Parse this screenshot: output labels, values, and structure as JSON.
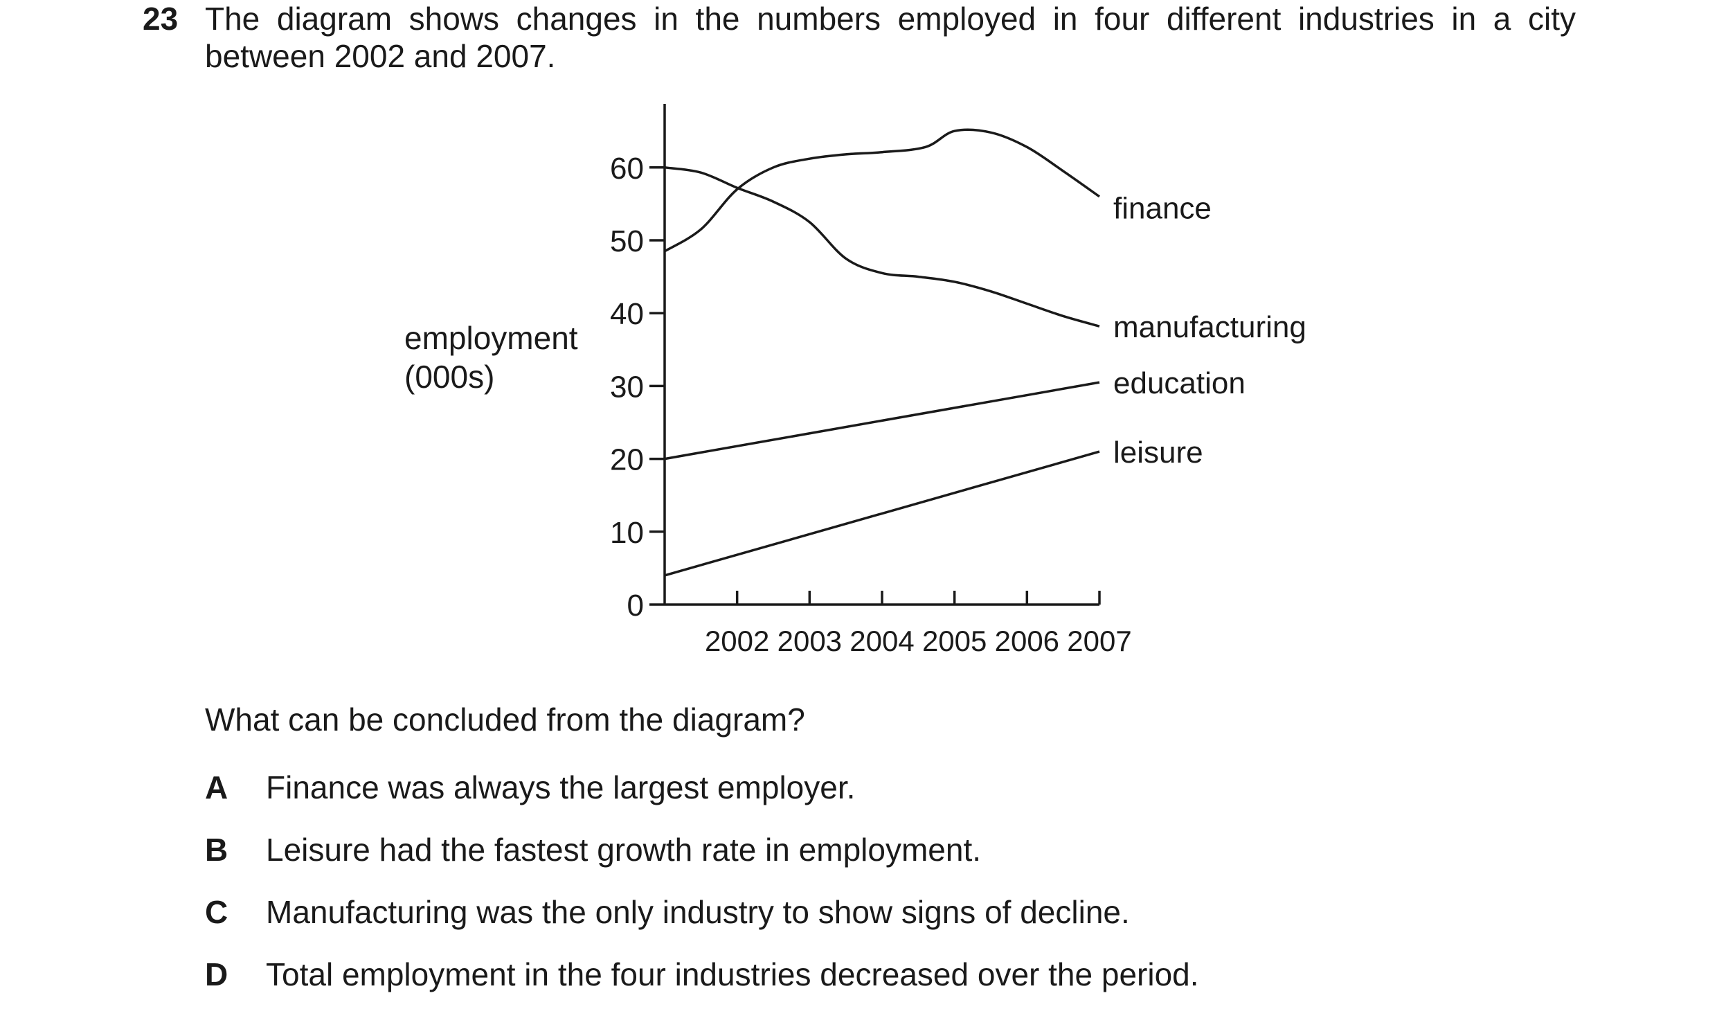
{
  "question": {
    "number": "23",
    "stem": "The diagram shows changes in the numbers employed in four different industries in a city between 2002 and 2007.",
    "prompt": "What can be concluded from the diagram?",
    "options": [
      {
        "letter": "A",
        "text": "Finance was always the largest employer."
      },
      {
        "letter": "B",
        "text": "Leisure had the fastest growth rate in employment."
      },
      {
        "letter": "C",
        "text": "Manufacturing was the only industry to show signs of decline."
      },
      {
        "letter": "D",
        "text": "Total employment in the four industries decreased over the period."
      }
    ]
  },
  "chart_data": {
    "type": "line",
    "title": "",
    "ylabel_line1": "employment",
    "ylabel_line2": "(000s)",
    "xlabel": "",
    "ylim": [
      0,
      68
    ],
    "xlim": [
      2001,
      2007
    ],
    "y_ticks": [
      0,
      10,
      20,
      30,
      40,
      50,
      60
    ],
    "x_ticks": [
      2002,
      2003,
      2004,
      2005,
      2006,
      2007
    ],
    "grid": false,
    "series": [
      {
        "name": "finance",
        "points": [
          [
            2001,
            48.5
          ],
          [
            2001.5,
            51.5
          ],
          [
            2002,
            57
          ],
          [
            2002.5,
            60
          ],
          [
            2003,
            61.2
          ],
          [
            2003.5,
            61.8
          ],
          [
            2004,
            62.1
          ],
          [
            2004.6,
            62.8
          ],
          [
            2005,
            65
          ],
          [
            2005.5,
            64.8
          ],
          [
            2006,
            62.8
          ],
          [
            2006.5,
            59.5
          ],
          [
            2007,
            56
          ]
        ]
      },
      {
        "name": "manufacturing",
        "points": [
          [
            2001,
            60
          ],
          [
            2001.5,
            59.3
          ],
          [
            2002,
            57.2
          ],
          [
            2002.5,
            55.3
          ],
          [
            2003,
            52.5
          ],
          [
            2003.5,
            47.5
          ],
          [
            2004,
            45.5
          ],
          [
            2004.5,
            45
          ],
          [
            2005,
            44.3
          ],
          [
            2005.5,
            43
          ],
          [
            2006,
            41.3
          ],
          [
            2006.5,
            39.6
          ],
          [
            2007,
            38.2
          ]
        ]
      },
      {
        "name": "education",
        "points": [
          [
            2001,
            20
          ],
          [
            2007,
            30.5
          ]
        ]
      },
      {
        "name": "leisure",
        "points": [
          [
            2001,
            4
          ],
          [
            2007,
            21
          ]
        ]
      }
    ]
  }
}
